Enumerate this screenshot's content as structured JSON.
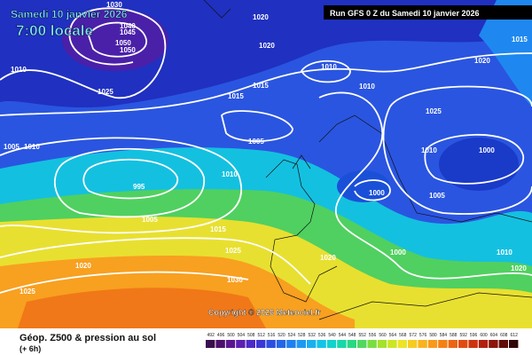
{
  "header": {
    "date": "Samedi 10 janvier 2026",
    "time": "7:00 locale",
    "run": "Run GFS 0 Z du Samedi 10 janvier 2026"
  },
  "copyright": "Copyright © 2026 Meteociel.fr",
  "footer": {
    "title": "Géop. Z500 & pression au sol",
    "lead": "(+ 6h)"
  },
  "isobar_labels": [
    1030,
    1040,
    1045,
    1050,
    1050,
    1020,
    1020,
    1010,
    1025,
    1015,
    1015,
    1010,
    1010,
    1020,
    1015,
    1025,
    1005,
    1010,
    1005,
    1010,
    1000,
    995,
    1000,
    1005,
    1005,
    1010,
    1015,
    1025,
    1020,
    1030,
    1025,
    1020,
    1000,
    1010,
    1020
  ],
  "scale": {
    "labels": [
      492,
      496,
      500,
      504,
      508,
      512,
      516,
      520,
      524,
      528,
      532,
      536,
      540,
      544,
      548,
      552,
      556,
      560,
      564,
      568,
      572,
      576,
      580,
      584,
      588,
      592,
      596,
      600,
      604,
      608,
      612
    ],
    "colors": [
      "#3a0d4d",
      "#4b0f6b",
      "#5a1590",
      "#5c1fb0",
      "#4b2ac8",
      "#3a38d6",
      "#2d4ee0",
      "#2466e8",
      "#1f80f0",
      "#1e99f2",
      "#18b0f0",
      "#13c4e6",
      "#12d2cc",
      "#16d8a8",
      "#2ad884",
      "#50d860",
      "#7ade40",
      "#a4e22c",
      "#cce624",
      "#eee426",
      "#f6cc22",
      "#f8b41e",
      "#f89a1a",
      "#f48016",
      "#ec6612",
      "#e04c10",
      "#cc340e",
      "#b0200c",
      "#8a140a",
      "#600c08",
      "#300606"
    ]
  }
}
